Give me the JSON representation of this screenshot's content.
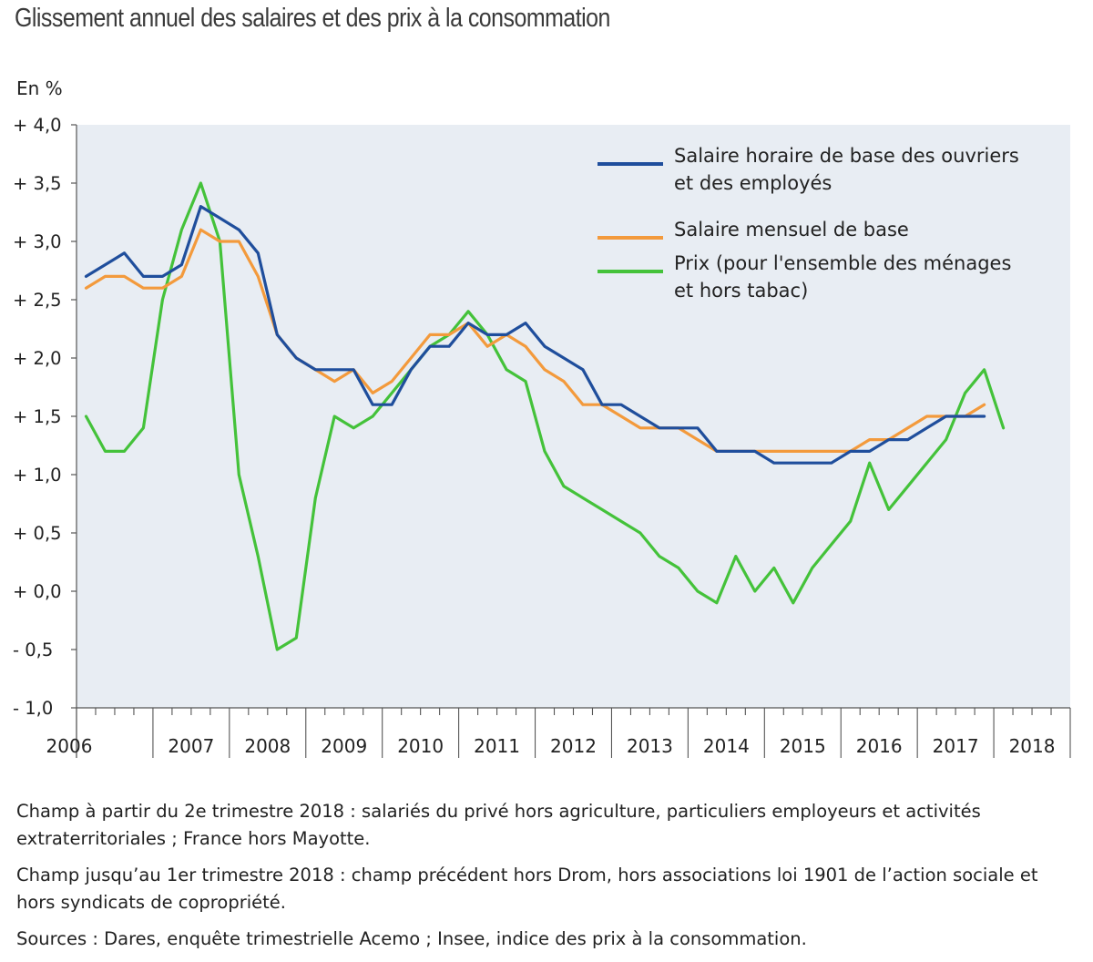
{
  "title": "Glissement annuel des salaires et des prix à la consommation",
  "unit_label": "En %",
  "notes": [
    "Champ à partir du 2e trimestre 2018 : salariés du privé hors agriculture, particuliers employeurs et activités extraterritoriales ; France hors Mayotte.",
    "Champ jusqu’au 1er trimestre 2018 : champ précédent hors Drom, hors associations loi 1901 de l’action sociale et hors syndicats de copropriété.",
    "Sources : Dares, enquête trimestrielle Acemo ; Insee, indice des prix à la consommation."
  ],
  "chart_data": {
    "type": "line",
    "x_start": "2006-T1",
    "frequency": "quarterly",
    "x_tick_labels": [
      "2006",
      "2007",
      "2008",
      "2009",
      "2010",
      "2011",
      "2012",
      "2013",
      "2014",
      "2015",
      "2016",
      "2017",
      "2018"
    ],
    "ylim": [
      -1.0,
      4.0
    ],
    "y_tick_labels": [
      "+ 4,0",
      "+ 3,5",
      "+ 3,0",
      "+ 2,5",
      "+ 2,0",
      "+ 1,5",
      "+ 1,0",
      "+ 0,5",
      "+ 0,0",
      "- 0,5",
      "- 1,0"
    ],
    "legend_position": "top-right",
    "grid": false,
    "background": "#e8edf3",
    "series": [
      {
        "name_lines": [
          "Salaire horaire de base des ouvriers",
          "et des employés"
        ],
        "color": "#1f4e9c",
        "values": [
          2.7,
          2.8,
          2.9,
          2.7,
          2.7,
          2.8,
          3.3,
          3.2,
          3.1,
          2.9,
          2.2,
          2.0,
          1.9,
          1.9,
          1.9,
          1.6,
          1.6,
          1.9,
          2.1,
          2.1,
          2.3,
          2.2,
          2.2,
          2.3,
          2.1,
          2.0,
          1.9,
          1.6,
          1.6,
          1.5,
          1.4,
          1.4,
          1.4,
          1.2,
          1.2,
          1.2,
          1.1,
          1.1,
          1.1,
          1.1,
          1.2,
          1.2,
          1.3,
          1.3,
          1.4,
          1.5,
          1.5,
          1.5
        ]
      },
      {
        "name_lines": [
          "Salaire mensuel de base"
        ],
        "color": "#f39a3c",
        "values": [
          2.6,
          2.7,
          2.7,
          2.6,
          2.6,
          2.7,
          3.1,
          3.0,
          3.0,
          2.7,
          2.2,
          2.0,
          1.9,
          1.8,
          1.9,
          1.7,
          1.8,
          2.0,
          2.2,
          2.2,
          2.3,
          2.1,
          2.2,
          2.1,
          1.9,
          1.8,
          1.6,
          1.6,
          1.5,
          1.4,
          1.4,
          1.4,
          1.3,
          1.2,
          1.2,
          1.2,
          1.2,
          1.2,
          1.2,
          1.2,
          1.2,
          1.3,
          1.3,
          1.4,
          1.5,
          1.5,
          1.5,
          1.6
        ]
      },
      {
        "name_lines": [
          "Prix (pour l'ensemble des ménages",
          "et hors tabac)"
        ],
        "color": "#44c23a",
        "values": [
          1.5,
          1.2,
          1.2,
          1.4,
          2.5,
          3.1,
          3.5,
          3.0,
          1.0,
          0.3,
          -0.5,
          -0.4,
          0.8,
          1.5,
          1.4,
          1.5,
          1.7,
          1.9,
          2.1,
          2.2,
          2.4,
          2.2,
          1.9,
          1.8,
          1.2,
          0.9,
          0.8,
          0.7,
          0.6,
          0.5,
          0.3,
          0.2,
          0.0,
          -0.1,
          0.3,
          0.0,
          0.2,
          -0.1,
          0.2,
          0.4,
          0.6,
          1.1,
          0.7,
          0.9,
          1.1,
          1.3,
          1.7,
          1.9,
          1.4
        ]
      }
    ]
  }
}
